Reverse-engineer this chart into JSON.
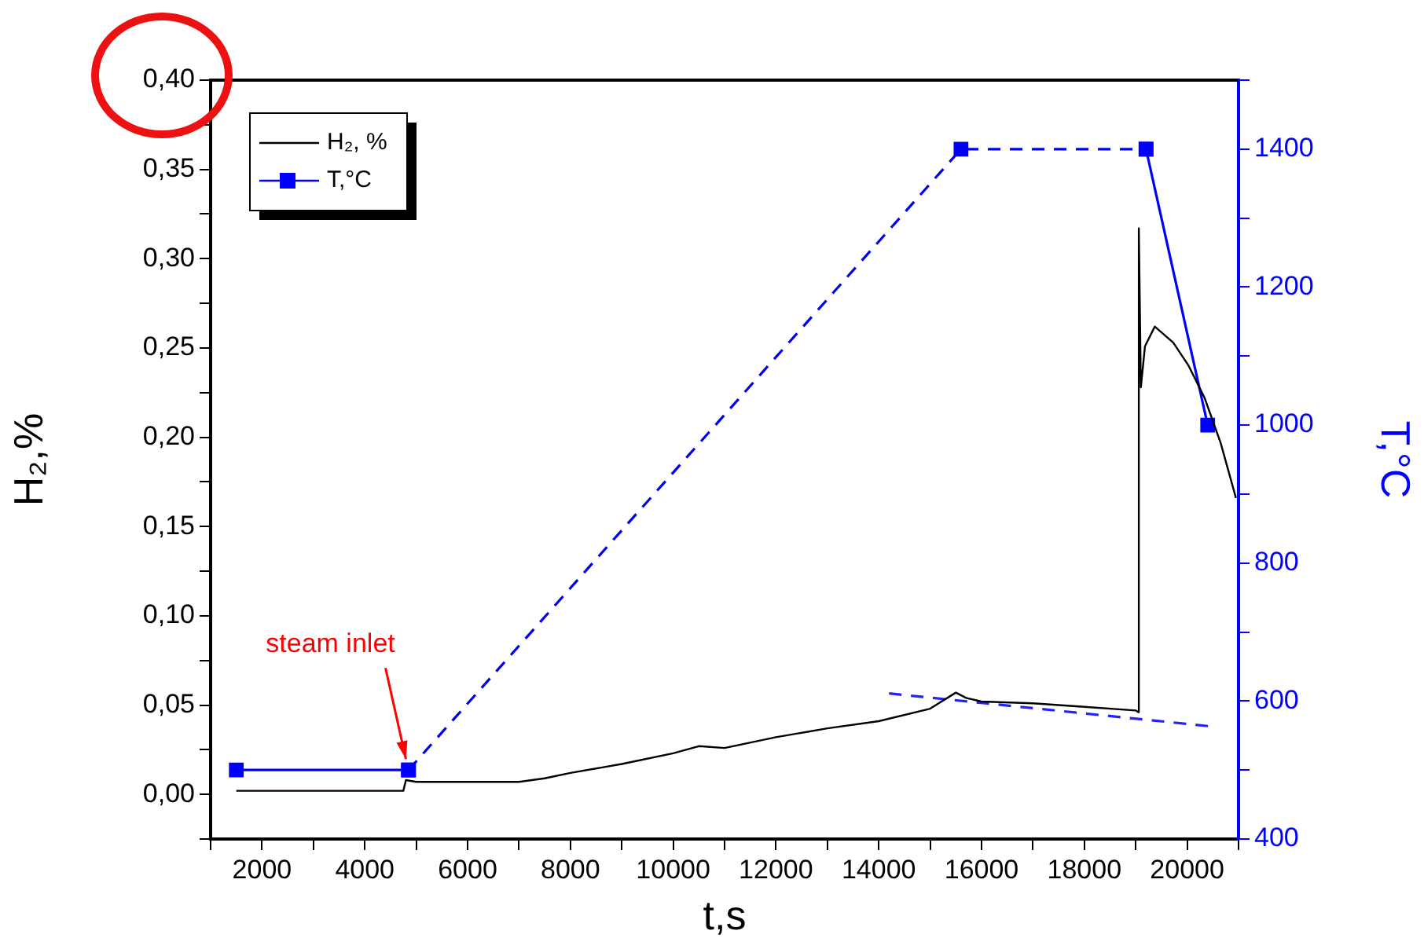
{
  "chart_data": {
    "type": "line",
    "xlabel": "t,s",
    "ylabel": "H₂,%",
    "y2label": "T,°C",
    "xlim": [
      1000,
      21000
    ],
    "xticks": [
      {
        "value": 1000,
        "label": null
      },
      2000,
      {
        "value": 3000,
        "label": null
      },
      4000,
      {
        "value": 5000,
        "label": null
      },
      6000,
      {
        "value": 7000,
        "label": null
      },
      8000,
      {
        "value": 9000,
        "label": null
      },
      10000,
      {
        "value": 11000,
        "label": null
      },
      12000,
      {
        "value": 13000,
        "label": null
      },
      14000,
      {
        "value": 15000,
        "label": null
      },
      16000,
      {
        "value": 17000,
        "label": null
      },
      18000,
      {
        "value": 19000,
        "label": null
      },
      20000,
      {
        "value": 21000,
        "label": null
      }
    ],
    "ylim": [
      -0.025,
      0.4
    ],
    "yticks": [
      {
        "value": -0.025,
        "label": null
      },
      {
        "value": 0,
        "label": "0,00"
      },
      {
        "value": 0.025,
        "label": null
      },
      {
        "value": 0.05,
        "label": "0,05"
      },
      {
        "value": 0.075,
        "label": null
      },
      {
        "value": 0.1,
        "label": "0,10"
      },
      {
        "value": 0.125,
        "label": null
      },
      {
        "value": 0.15,
        "label": "0,15"
      },
      {
        "value": 0.175,
        "label": null
      },
      {
        "value": 0.2,
        "label": "0,20"
      },
      {
        "value": 0.225,
        "label": null
      },
      {
        "value": 0.25,
        "label": "0,25"
      },
      {
        "value": 0.275,
        "label": null
      },
      {
        "value": 0.3,
        "label": "0,30"
      },
      {
        "value": 0.325,
        "label": null
      },
      {
        "value": 0.35,
        "label": "0,35"
      },
      {
        "value": 0.375,
        "label": null
      },
      {
        "value": 0.4,
        "label": "0,40"
      }
    ],
    "y2lim": [
      400,
      1500
    ],
    "y2ticks": [
      400,
      {
        "value": 500,
        "label": null
      },
      600,
      {
        "value": 700,
        "label": null
      },
      800,
      {
        "value": 900,
        "label": null
      },
      1000,
      {
        "value": 1100,
        "label": null
      },
      1200,
      {
        "value": 1300,
        "label": null
      },
      1400,
      {
        "value": 1500,
        "label": null
      }
    ],
    "grid": false,
    "legend": "top left",
    "annotations": [
      {
        "text": "steam inlet",
        "x": 4800,
        "y": 0.018
      }
    ],
    "series": [
      {
        "name": "H₂, %",
        "color": "#000000",
        "marker": "none",
        "line_style": "solid",
        "x": [
          1500,
          2500,
          3500,
          4750,
          4800,
          5000,
          6000,
          7000,
          7500,
          8000,
          9000,
          10000,
          10500,
          11000,
          12000,
          13000,
          14000,
          15000,
          15500,
          15700,
          16000,
          17000,
          18000,
          19000,
          19050,
          19060,
          19100,
          19180,
          19370,
          19730,
          20030,
          20340,
          20650,
          20950
        ],
        "values": [
          0.002,
          0.002,
          0.002,
          0.002,
          0.008,
          0.007,
          0.007,
          0.007,
          0.009,
          0.012,
          0.017,
          0.023,
          0.027,
          0.026,
          0.032,
          0.037,
          0.041,
          0.048,
          0.057,
          0.054,
          0.052,
          0.051,
          0.049,
          0.047,
          0.046,
          0.317,
          0.228,
          0.251,
          0.262,
          0.253,
          0.24,
          0.222,
          0.197,
          0.166
        ]
      },
      {
        "name": "T,°C",
        "color": "#0000ff",
        "axis": "y2",
        "marker": "square",
        "line_style": "solid",
        "x": [
          1500,
          4850,
          15600,
          19200,
          20400
        ],
        "values": [
          500,
          500,
          null,
          1400,
          1000
        ]
      },
      {
        "color": "#0000ee",
        "axis": "y2",
        "marker": "square",
        "line_style": "dashed",
        "x": [
          4850,
          15600,
          19200
        ],
        "values": [
          500,
          1400,
          1400
        ]
      },
      {
        "color": "#2222ff",
        "axis": "y2",
        "marker": "none",
        "line_style": "dashed",
        "x": [
          14200,
          20500
        ],
        "values": [
          611,
          563
        ]
      }
    ]
  }
}
